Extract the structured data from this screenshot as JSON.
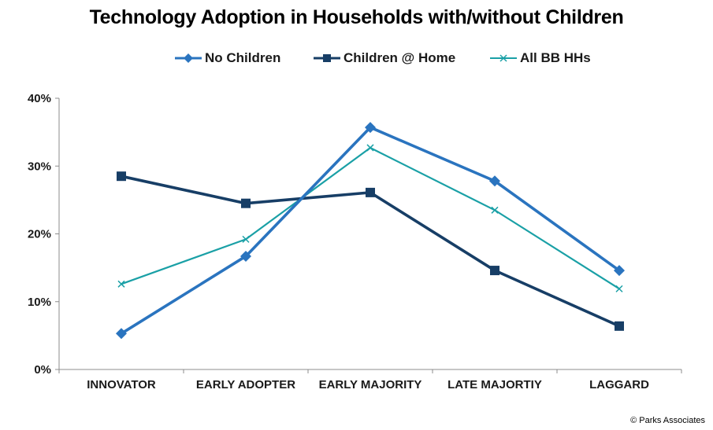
{
  "chart_data": {
    "type": "line",
    "title": "Technology Adoption in Households with/without Children",
    "categories": [
      "INNOVATOR",
      "EARLY ADOPTER",
      "EARLY MAJORITY",
      "LATE MAJORTIY",
      "LAGGARD"
    ],
    "ylim": [
      0,
      40
    ],
    "yticks": [
      "0%",
      "10%",
      "20%",
      "30%",
      "40%"
    ],
    "series": [
      {
        "name": "No Children",
        "values": [
          5.3,
          16.7,
          35.7,
          27.8,
          14.6
        ],
        "color": "#2a74bf",
        "marker": "diamond"
      },
      {
        "name": "Children @ Home",
        "values": [
          28.5,
          24.5,
          26.1,
          14.6,
          6.4
        ],
        "color": "#173e66",
        "marker": "square"
      },
      {
        "name": "All BB HHs",
        "values": [
          12.6,
          19.2,
          32.7,
          23.5,
          11.9
        ],
        "color": "#1aa0a6",
        "marker": "x"
      }
    ],
    "legend_position": "top"
  },
  "credit": "© Parks Associates"
}
